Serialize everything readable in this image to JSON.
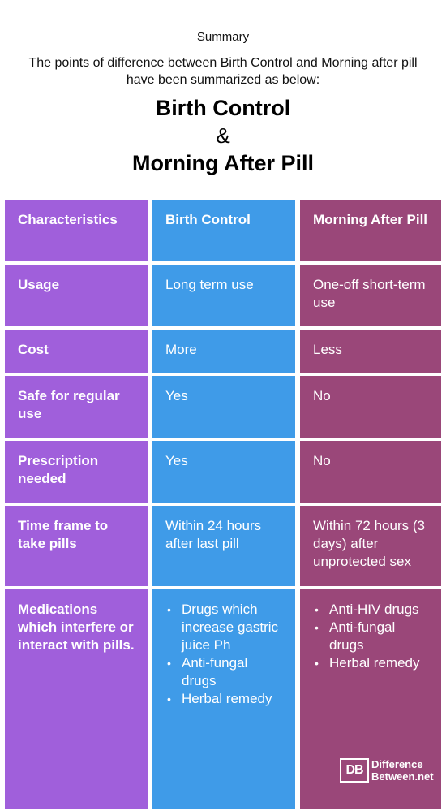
{
  "summary_label": "Summary",
  "intro": "The points of difference between Birth Control and Morning after pill have been summarized as below:",
  "title": {
    "line1": "Birth Control",
    "line2": "&",
    "line3": "Morning After Pill"
  },
  "table": {
    "headers": [
      "Characteristics",
      "Birth Control",
      "Morning After Pill"
    ],
    "rows": [
      {
        "characteristic": "Usage",
        "birth_control": "Long term use",
        "morning_after": "One-off short-term use"
      },
      {
        "characteristic": "Cost",
        "birth_control": "More",
        "morning_after": "Less"
      },
      {
        "characteristic": "Safe for regular use",
        "birth_control": "Yes",
        "morning_after": "No"
      },
      {
        "characteristic": "Prescription needed",
        "birth_control": "Yes",
        "morning_after": "No"
      },
      {
        "characteristic": "Time frame to take pills",
        "birth_control": "Within 24 hours after last pill",
        "morning_after": "Within 72 hours (3 days) after unprotected sex"
      }
    ],
    "medications": {
      "characteristic": "Medications which interfere or interact with pills.",
      "birth_control": [
        "Drugs which increase gastric juice Ph",
        "Anti-fungal drugs",
        "Herbal remedy"
      ],
      "morning_after": [
        "Anti-HIV drugs",
        "Anti-fungal drugs",
        "Herbal remedy"
      ]
    }
  },
  "logo": {
    "mark": "DB",
    "line1": "Difference",
    "line2": "Between.net"
  },
  "colors": {
    "characteristics_column": "#a05fdb",
    "birth_control_column": "#3f9be8",
    "morning_after_column": "#9a4779"
  }
}
